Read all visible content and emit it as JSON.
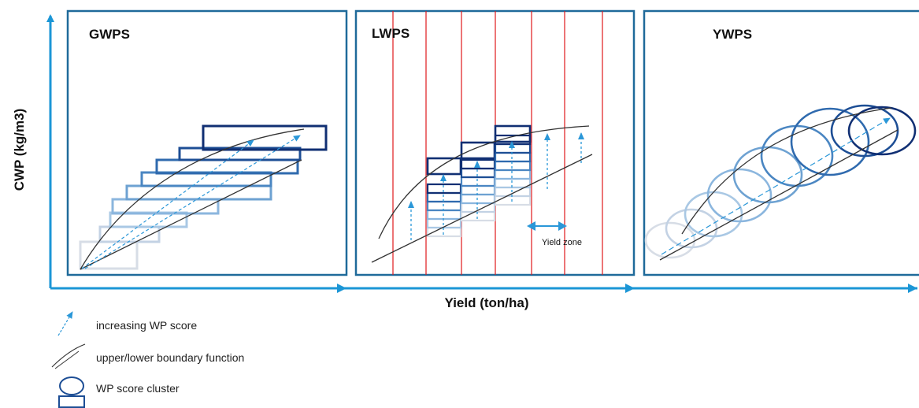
{
  "panels": [
    {
      "title": "GWPS"
    },
    {
      "title": "LWPS",
      "zone_label": "Yield zone"
    },
    {
      "title": "YWPS"
    }
  ],
  "axes": {
    "x_label": "Yield (ton/ha)",
    "y_label": "CWP (kg/m3)"
  },
  "legend": [
    {
      "icon": "dashed-arrow-icon",
      "label": "increasing WP score"
    },
    {
      "icon": "boundary-curve-icon",
      "label": "upper/lower boundary function"
    },
    {
      "icon": "cluster-icon",
      "label": "WP score cluster"
    }
  ],
  "colors": {
    "axis": "#1b96d6",
    "frame": "#1f6a9a",
    "zone_line": "#e0191c",
    "arrow": "#2a97d8",
    "shades": [
      "#d7dde6",
      "#c3d2e4",
      "#a9c8e4",
      "#8bb6de",
      "#6ea2d2",
      "#4a86c2",
      "#2f6aae",
      "#1d4e95",
      "#102f73"
    ]
  }
}
